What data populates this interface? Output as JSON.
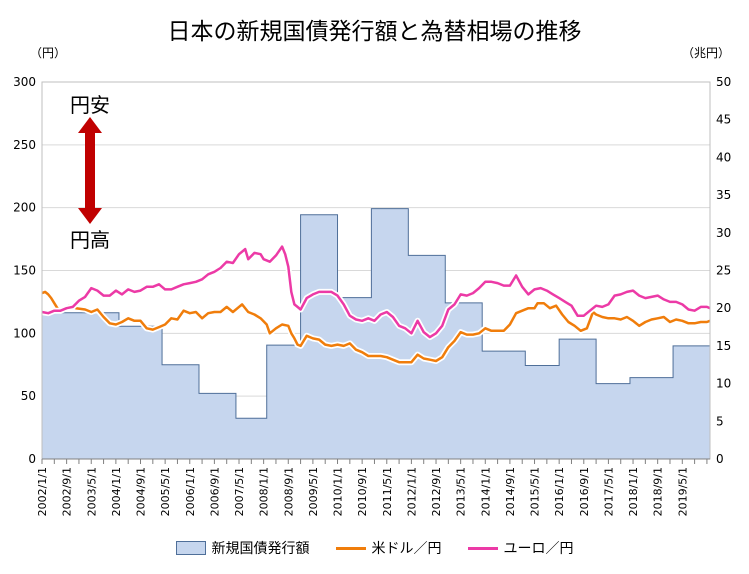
{
  "chart_data": {
    "title": "日本の新規国債発行額と為替相場の推移",
    "type": "area+line",
    "y_left": {
      "unit": "（円）",
      "range": [
        0,
        300
      ],
      "ticks": [
        0,
        50,
        100,
        150,
        200,
        250,
        300
      ]
    },
    "y_right": {
      "unit": "（兆円）",
      "range": [
        0,
        50
      ],
      "ticks": [
        0,
        5,
        10,
        15,
        20,
        25,
        30,
        35,
        40,
        45,
        50
      ]
    },
    "x_range": [
      "2002-01",
      "2020-02"
    ],
    "x_ticks": [
      "2002/1/1",
      "2002/9/1",
      "2003/5/1",
      "2004/1/1",
      "2004/9/1",
      "2005/5/1",
      "2006/1/1",
      "2006/9/1",
      "2007/5/1",
      "2008/1/1",
      "2008/9/1",
      "2009/5/1",
      "2010/1/1",
      "2010/9/1",
      "2011/5/1",
      "2012/1/1",
      "2012/9/1",
      "2013/5/1",
      "2014/1/1",
      "2014/9/1",
      "2015/5/1",
      "2016/1/1",
      "2016/9/1",
      "2017/5/1",
      "2018/1/1",
      "2018/9/1",
      "2019/5/1"
    ],
    "annotations": {
      "yen_weak": "円安",
      "yen_strong": "円高"
    },
    "colors": {
      "bond_fill": "#c6d6ee",
      "bond_stroke": "#4f6f99",
      "usd": "#f07d0b",
      "eur": "#ec3aa6",
      "arrow": "#c00000"
    },
    "series": [
      {
        "name": "新規国債発行額",
        "axis": "right",
        "kind": "area",
        "steps": [
          {
            "start": "2002-01",
            "value": 19.4
          },
          {
            "start": "2004-02",
            "value": 17.6
          },
          {
            "start": "2005-04",
            "value": 12.5
          },
          {
            "start": "2006-04",
            "value": 8.7
          },
          {
            "start": "2007-04",
            "value": 5.4
          },
          {
            "start": "2008-02",
            "value": 15.1
          },
          {
            "start": "2009-01",
            "value": 32.4
          },
          {
            "start": "2010-01",
            "value": 21.4
          },
          {
            "start": "2010-12",
            "value": 33.2
          },
          {
            "start": "2011-12",
            "value": 27.0
          },
          {
            "start": "2012-12",
            "value": 20.7
          },
          {
            "start": "2013-12",
            "value": 14.3
          },
          {
            "start": "2015-02",
            "value": 12.4
          },
          {
            "start": "2016-01",
            "value": 15.9
          },
          {
            "start": "2017-01",
            "value": 10.0
          },
          {
            "start": "2017-12",
            "value": 10.8
          },
          {
            "start": "2019-02",
            "value": 15.0
          }
        ],
        "end": "2020-02"
      },
      {
        "name": "米ドル／円",
        "axis": "left",
        "kind": "line",
        "points": [
          [
            "2002-01",
            132
          ],
          [
            "2002-02",
            133
          ],
          [
            "2002-03",
            131
          ],
          [
            "2002-04",
            128
          ],
          [
            "2002-05",
            124
          ],
          [
            "2002-06",
            120
          ],
          [
            "2002-07",
            118
          ],
          [
            "2002-08",
            119
          ],
          [
            "2002-09",
            121
          ],
          [
            "2002-10",
            122
          ],
          [
            "2002-11",
            121
          ],
          [
            "2002-12",
            120
          ],
          [
            "2003-03",
            119
          ],
          [
            "2003-05",
            117
          ],
          [
            "2003-07",
            119
          ],
          [
            "2003-09",
            113
          ],
          [
            "2003-11",
            108
          ],
          [
            "2004-01",
            107
          ],
          [
            "2004-03",
            109
          ],
          [
            "2004-05",
            112
          ],
          [
            "2004-07",
            110
          ],
          [
            "2004-09",
            110
          ],
          [
            "2004-11",
            104
          ],
          [
            "2005-01",
            103
          ],
          [
            "2005-03",
            105
          ],
          [
            "2005-05",
            107
          ],
          [
            "2005-07",
            112
          ],
          [
            "2005-09",
            111
          ],
          [
            "2005-11",
            118
          ],
          [
            "2006-01",
            116
          ],
          [
            "2006-03",
            117
          ],
          [
            "2006-05",
            112
          ],
          [
            "2006-07",
            116
          ],
          [
            "2006-09",
            117
          ],
          [
            "2006-11",
            117
          ],
          [
            "2007-01",
            121
          ],
          [
            "2007-03",
            117
          ],
          [
            "2007-05",
            121
          ],
          [
            "2007-06",
            123
          ],
          [
            "2007-08",
            117
          ],
          [
            "2007-10",
            115
          ],
          [
            "2007-12",
            112
          ],
          [
            "2008-02",
            107
          ],
          [
            "2008-03",
            100
          ],
          [
            "2008-05",
            104
          ],
          [
            "2008-07",
            107
          ],
          [
            "2008-09",
            106
          ],
          [
            "2008-10",
            100
          ],
          [
            "2008-11",
            96
          ],
          [
            "2008-12",
            91
          ],
          [
            "2009-01",
            90
          ],
          [
            "2009-03",
            98
          ],
          [
            "2009-05",
            96
          ],
          [
            "2009-07",
            95
          ],
          [
            "2009-09",
            91
          ],
          [
            "2009-11",
            90
          ],
          [
            "2010-01",
            91
          ],
          [
            "2010-03",
            90
          ],
          [
            "2010-05",
            92
          ],
          [
            "2010-07",
            87
          ],
          [
            "2010-09",
            85
          ],
          [
            "2010-11",
            82
          ],
          [
            "2011-01",
            82
          ],
          [
            "2011-03",
            82
          ],
          [
            "2011-05",
            81
          ],
          [
            "2011-07",
            79
          ],
          [
            "2011-09",
            77
          ],
          [
            "2011-11",
            77
          ],
          [
            "2012-01",
            77
          ],
          [
            "2012-03",
            83
          ],
          [
            "2012-05",
            80
          ],
          [
            "2012-07",
            79
          ],
          [
            "2012-09",
            78
          ],
          [
            "2012-11",
            81
          ],
          [
            "2013-01",
            89
          ],
          [
            "2013-03",
            94
          ],
          [
            "2013-05",
            101
          ],
          [
            "2013-07",
            99
          ],
          [
            "2013-09",
            99
          ],
          [
            "2013-11",
            100
          ],
          [
            "2014-01",
            104
          ],
          [
            "2014-03",
            102
          ],
          [
            "2014-05",
            102
          ],
          [
            "2014-07",
            102
          ],
          [
            "2014-09",
            107
          ],
          [
            "2014-11",
            116
          ],
          [
            "2015-01",
            118
          ],
          [
            "2015-03",
            120
          ],
          [
            "2015-05",
            120
          ],
          [
            "2015-06",
            124
          ],
          [
            "2015-08",
            124
          ],
          [
            "2015-10",
            120
          ],
          [
            "2015-12",
            122
          ],
          [
            "2016-02",
            115
          ],
          [
            "2016-04",
            109
          ],
          [
            "2016-06",
            106
          ],
          [
            "2016-08",
            102
          ],
          [
            "2016-10",
            104
          ],
          [
            "2016-12",
            117
          ],
          [
            "2017-01",
            115
          ],
          [
            "2017-03",
            113
          ],
          [
            "2017-05",
            112
          ],
          [
            "2017-07",
            112
          ],
          [
            "2017-09",
            111
          ],
          [
            "2017-11",
            113
          ],
          [
            "2018-01",
            110
          ],
          [
            "2018-03",
            106
          ],
          [
            "2018-05",
            109
          ],
          [
            "2018-07",
            111
          ],
          [
            "2018-09",
            112
          ],
          [
            "2018-11",
            113
          ],
          [
            "2019-01",
            109
          ],
          [
            "2019-03",
            111
          ],
          [
            "2019-05",
            110
          ],
          [
            "2019-07",
            108
          ],
          [
            "2019-09",
            108
          ],
          [
            "2019-11",
            109
          ],
          [
            "2020-01",
            109
          ],
          [
            "2020-02",
            110
          ]
        ]
      },
      {
        "name": "ユーロ／円",
        "axis": "left",
        "kind": "line",
        "points": [
          [
            "2002-01",
            117
          ],
          [
            "2002-03",
            116
          ],
          [
            "2002-05",
            118
          ],
          [
            "2002-07",
            118
          ],
          [
            "2002-09",
            120
          ],
          [
            "2002-11",
            121
          ],
          [
            "2003-01",
            126
          ],
          [
            "2003-03",
            129
          ],
          [
            "2003-05",
            136
          ],
          [
            "2003-07",
            134
          ],
          [
            "2003-09",
            130
          ],
          [
            "2003-11",
            130
          ],
          [
            "2004-01",
            134
          ],
          [
            "2004-03",
            131
          ],
          [
            "2004-05",
            135
          ],
          [
            "2004-07",
            133
          ],
          [
            "2004-09",
            134
          ],
          [
            "2004-11",
            137
          ],
          [
            "2005-01",
            137
          ],
          [
            "2005-03",
            139
          ],
          [
            "2005-05",
            135
          ],
          [
            "2005-07",
            135
          ],
          [
            "2005-09",
            137
          ],
          [
            "2005-11",
            139
          ],
          [
            "2006-01",
            140
          ],
          [
            "2006-03",
            141
          ],
          [
            "2006-05",
            143
          ],
          [
            "2006-07",
            147
          ],
          [
            "2006-09",
            149
          ],
          [
            "2006-11",
            152
          ],
          [
            "2007-01",
            157
          ],
          [
            "2007-03",
            156
          ],
          [
            "2007-05",
            163
          ],
          [
            "2007-07",
            167
          ],
          [
            "2007-08",
            159
          ],
          [
            "2007-10",
            164
          ],
          [
            "2007-12",
            163
          ],
          [
            "2008-01",
            159
          ],
          [
            "2008-03",
            157
          ],
          [
            "2008-05",
            162
          ],
          [
            "2008-07",
            169
          ],
          [
            "2008-08",
            163
          ],
          [
            "2008-09",
            153
          ],
          [
            "2008-10",
            133
          ],
          [
            "2008-11",
            123
          ],
          [
            "2008-12",
            121
          ],
          [
            "2009-01",
            119
          ],
          [
            "2009-03",
            128
          ],
          [
            "2009-05",
            131
          ],
          [
            "2009-07",
            133
          ],
          [
            "2009-09",
            133
          ],
          [
            "2009-11",
            133
          ],
          [
            "2010-01",
            130
          ],
          [
            "2010-03",
            123
          ],
          [
            "2010-05",
            114
          ],
          [
            "2010-07",
            111
          ],
          [
            "2010-09",
            110
          ],
          [
            "2010-11",
            112
          ],
          [
            "2011-01",
            110
          ],
          [
            "2011-03",
            115
          ],
          [
            "2011-05",
            117
          ],
          [
            "2011-07",
            113
          ],
          [
            "2011-09",
            106
          ],
          [
            "2011-11",
            104
          ],
          [
            "2012-01",
            100
          ],
          [
            "2012-03",
            110
          ],
          [
            "2012-05",
            101
          ],
          [
            "2012-07",
            97
          ],
          [
            "2012-09",
            100
          ],
          [
            "2012-11",
            106
          ],
          [
            "2013-01",
            119
          ],
          [
            "2013-03",
            123
          ],
          [
            "2013-05",
            131
          ],
          [
            "2013-07",
            130
          ],
          [
            "2013-09",
            132
          ],
          [
            "2013-11",
            136
          ],
          [
            "2014-01",
            141
          ],
          [
            "2014-03",
            141
          ],
          [
            "2014-05",
            140
          ],
          [
            "2014-07",
            138
          ],
          [
            "2014-09",
            138
          ],
          [
            "2014-11",
            146
          ],
          [
            "2015-01",
            137
          ],
          [
            "2015-03",
            131
          ],
          [
            "2015-05",
            135
          ],
          [
            "2015-07",
            136
          ],
          [
            "2015-09",
            134
          ],
          [
            "2015-11",
            131
          ],
          [
            "2016-01",
            128
          ],
          [
            "2016-03",
            125
          ],
          [
            "2016-05",
            122
          ],
          [
            "2016-07",
            114
          ],
          [
            "2016-09",
            114
          ],
          [
            "2016-11",
            118
          ],
          [
            "2017-01",
            122
          ],
          [
            "2017-03",
            121
          ],
          [
            "2017-05",
            123
          ],
          [
            "2017-07",
            130
          ],
          [
            "2017-09",
            131
          ],
          [
            "2017-11",
            133
          ],
          [
            "2018-01",
            134
          ],
          [
            "2018-03",
            130
          ],
          [
            "2018-05",
            128
          ],
          [
            "2018-07",
            129
          ],
          [
            "2018-09",
            130
          ],
          [
            "2018-11",
            127
          ],
          [
            "2019-01",
            125
          ],
          [
            "2019-03",
            125
          ],
          [
            "2019-05",
            123
          ],
          [
            "2019-07",
            119
          ],
          [
            "2019-09",
            118
          ],
          [
            "2019-11",
            121
          ],
          [
            "2020-01",
            121
          ],
          [
            "2020-02",
            120
          ]
        ]
      }
    ]
  }
}
